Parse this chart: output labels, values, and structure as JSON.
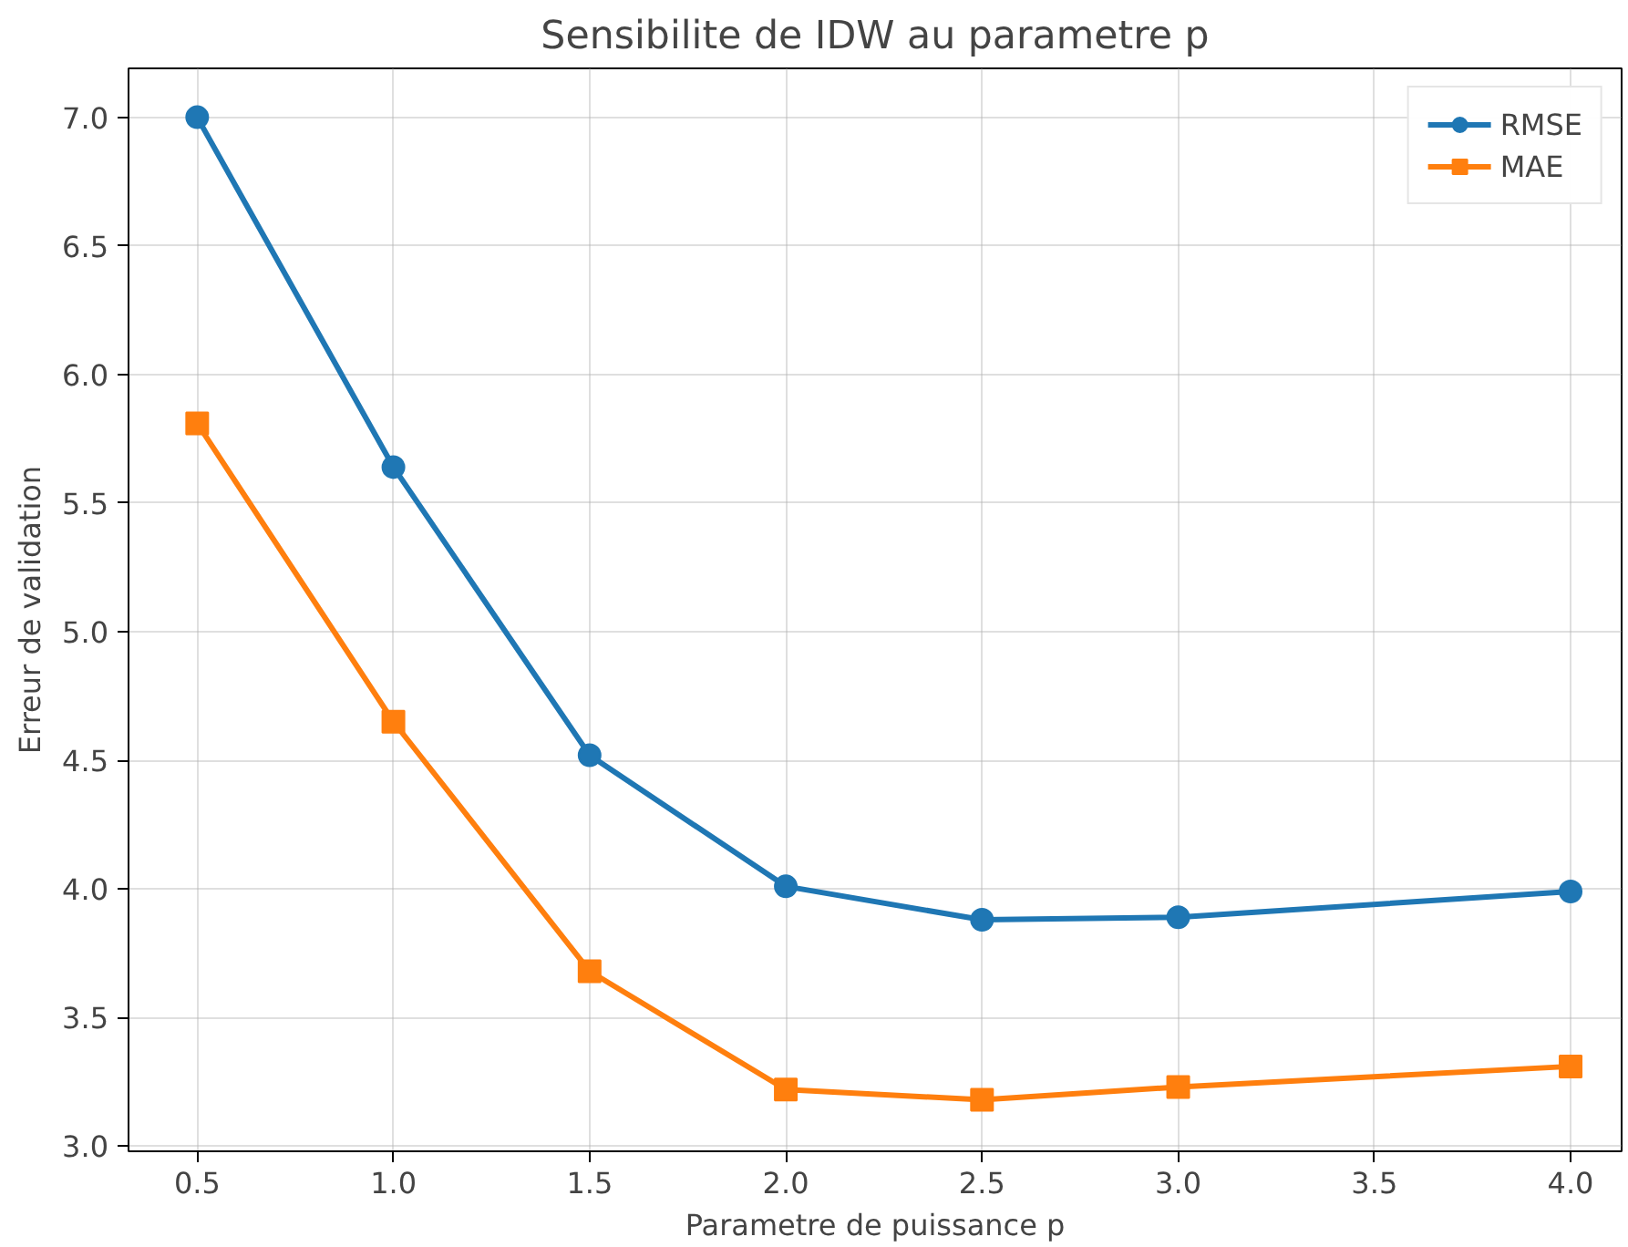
{
  "chart_data": {
    "type": "line",
    "title": "Sensibilite de IDW au parametre p",
    "xlabel": "Parametre de puissance p",
    "ylabel": "Erreur de validation",
    "x": [
      0.5,
      1.0,
      1.5,
      2.0,
      2.5,
      3.0,
      4.0
    ],
    "series": [
      {
        "name": "RMSE",
        "color": "#1f77b4",
        "marker": "circle",
        "values": [
          7.0,
          5.64,
          4.52,
          4.01,
          3.88,
          3.89,
          3.99
        ]
      },
      {
        "name": "MAE",
        "color": "#ff7f0e",
        "marker": "square",
        "values": [
          5.81,
          4.65,
          3.68,
          3.22,
          3.18,
          3.23,
          3.31
        ]
      }
    ],
    "xlim": [
      0.325,
      4.13
    ],
    "ylim": [
      2.98,
      7.19
    ],
    "xticks": [
      {
        "value": 0.5,
        "label": "0.5"
      },
      {
        "value": 1.0,
        "label": "1.0"
      },
      {
        "value": 1.5,
        "label": "1.5"
      },
      {
        "value": 2.0,
        "label": "2.0"
      },
      {
        "value": 2.5,
        "label": "2.5"
      },
      {
        "value": 3.0,
        "label": "3.0"
      },
      {
        "value": 3.5,
        "label": "3.5"
      },
      {
        "value": 4.0,
        "label": "4.0"
      }
    ],
    "yticks": [
      {
        "value": 3.0,
        "label": "3.0"
      },
      {
        "value": 3.5,
        "label": "3.5"
      },
      {
        "value": 4.0,
        "label": "4.0"
      },
      {
        "value": 4.5,
        "label": "4.5"
      },
      {
        "value": 5.0,
        "label": "5.0"
      },
      {
        "value": 5.5,
        "label": "5.5"
      },
      {
        "value": 6.0,
        "label": "6.0"
      },
      {
        "value": 6.5,
        "label": "6.5"
      },
      {
        "value": 7.0,
        "label": "7.0"
      }
    ],
    "grid": true,
    "legend": "top right",
    "line_style": "solid"
  }
}
